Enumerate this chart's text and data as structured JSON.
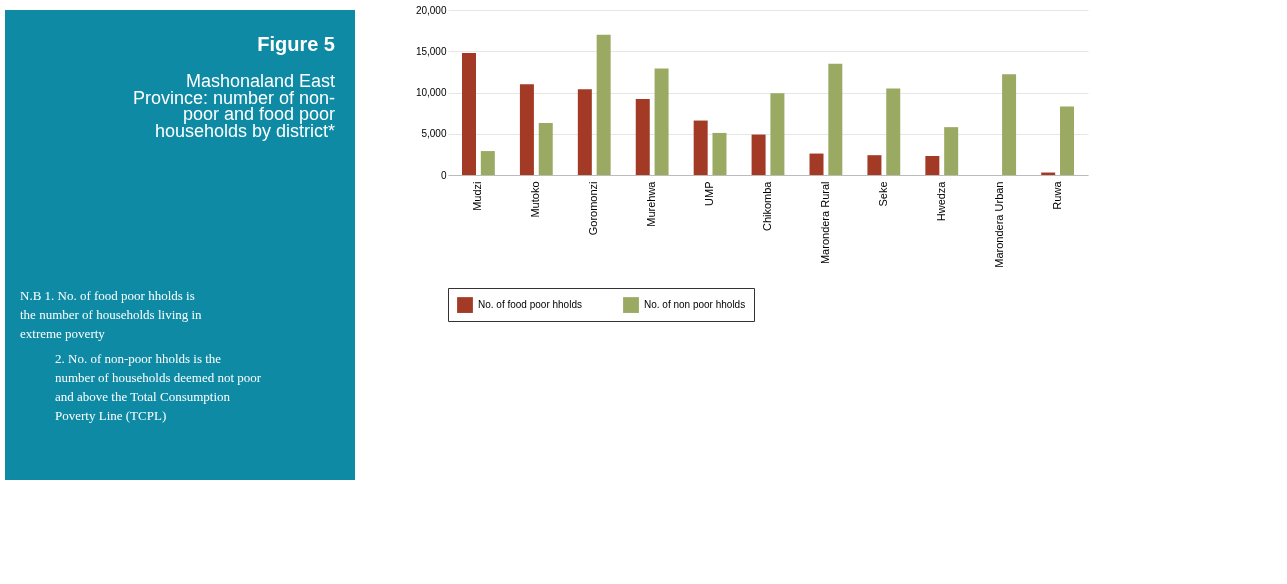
{
  "chart_data": {
    "type": "bar",
    "title": "Figure 5",
    "subtitle": "Mashonaland East Province: number of non-poor and food poor households by district*",
    "categories": [
      "Mudzi",
      "Mutoko",
      "Goromonzi",
      "Murehwa",
      "UMP",
      "Chikomba",
      "Marondera Rural",
      "Seke",
      "Hwedza",
      "Marondera Urban",
      "Ruwa"
    ],
    "series": [
      {
        "name": "No. of food poor hholds",
        "color": "#a33a25",
        "values": [
          14800,
          11000,
          10400,
          9200,
          6600,
          4900,
          2600,
          2400,
          2300,
          null,
          300
        ]
      },
      {
        "name": "No. of non poor hholds",
        "color": "#9aaa62",
        "values": [
          2900,
          6300,
          17000,
          12900,
          5100,
          9900,
          13500,
          10500,
          5800,
          12200,
          8300
        ]
      }
    ],
    "ylim": [
      0,
      20000
    ],
    "yticks": [
      {
        "value": 0,
        "label": "0"
      },
      {
        "value": 5000,
        "label": "5,000"
      },
      {
        "value": 10000,
        "label": "10,000"
      },
      {
        "value": 15000,
        "label": "15,000"
      },
      {
        "value": 20000,
        "label": "20,000"
      }
    ],
    "grid": "y",
    "legend": "bottom",
    "annotations": [
      "N.B 1. No. of food poor hholds is the number of households living in extreme poverty",
      "2. No. of non-poor hholds is the number of households deemed not poor and above the Total Consumption Poverty Line (TCPL)"
    ]
  }
}
